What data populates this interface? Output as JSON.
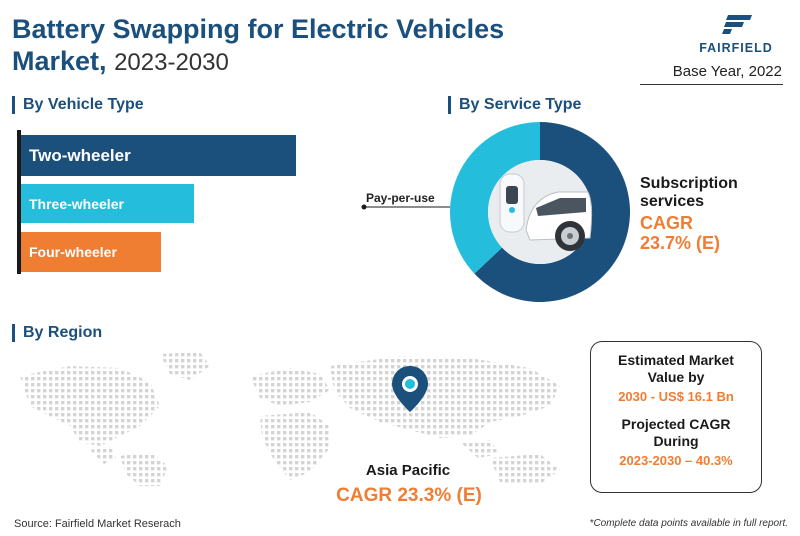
{
  "title": {
    "line1": "Battery Swapping for Electric Vehicles",
    "line2": "Market,",
    "years": "2023-2030"
  },
  "logo": {
    "text": "FAIRFIELD",
    "icon": "fairfield-logo-icon"
  },
  "base_year": "Base Year, 2022",
  "colors": {
    "navy": "#1b4f7c",
    "cyan": "#24bddc",
    "orange": "#ef7d32",
    "map": "#d4d4d4"
  },
  "chart_data": [
    {
      "type": "bar",
      "title": "By Vehicle Type",
      "categories": [
        "Two-wheeler",
        "Three-wheeler",
        "Four-wheeler"
      ],
      "values": [
        100,
        63,
        51
      ],
      "colors": [
        "#1b4f7c",
        "#24bddc",
        "#ef7d32"
      ]
    },
    {
      "type": "pie",
      "title": "By Service Type",
      "labels": [
        "Subscription services",
        "Pay-per-use"
      ],
      "values": [
        63,
        37
      ],
      "colors": [
        "#1b4f7c",
        "#24bddc"
      ],
      "cagr_label": "CAGR",
      "cagr_value": "23.7% (E)"
    }
  ],
  "region": {
    "title": "By Region",
    "name": "Asia Pacific",
    "cagr": "CAGR 23.3% (E)",
    "marker_icon": "map-pin-icon"
  },
  "info_box": {
    "estimated_head": "Estimated Market Value by",
    "estimated_value": "2030 - US$ 16.1 Bn",
    "projected_head": "Projected CAGR During",
    "projected_value": "2023-2030 – 40.3%"
  },
  "footer": {
    "source": "Source: Fairfield Market Reserach",
    "note": "*Complete data points available in full report."
  }
}
